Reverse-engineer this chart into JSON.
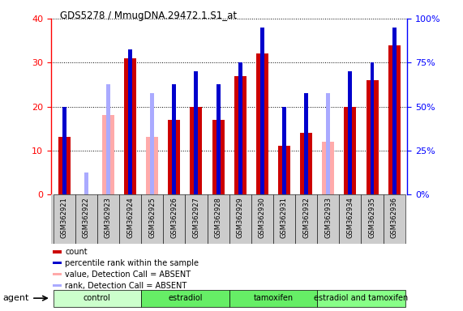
{
  "title": "GDS5278 / MmugDNA.29472.1.S1_at",
  "samples": [
    "GSM362921",
    "GSM362922",
    "GSM362923",
    "GSM362924",
    "GSM362925",
    "GSM362926",
    "GSM362927",
    "GSM362928",
    "GSM362929",
    "GSM362930",
    "GSM362931",
    "GSM362932",
    "GSM362933",
    "GSM362934",
    "GSM362935",
    "GSM362936"
  ],
  "red_count": [
    13,
    0,
    0,
    31,
    0,
    17,
    20,
    17,
    27,
    32,
    11,
    14,
    0,
    20,
    26,
    34
  ],
  "blue_rank": [
    20,
    0,
    0,
    33,
    0,
    25,
    28,
    25,
    30,
    38,
    20,
    23,
    0,
    28,
    30,
    38
  ],
  "pink_value": [
    0,
    0,
    18,
    0,
    13,
    0,
    0,
    0,
    0,
    0,
    0,
    0,
    12,
    0,
    0,
    0
  ],
  "lavender_rank": [
    0,
    5,
    25,
    0,
    23,
    0,
    0,
    0,
    0,
    0,
    0,
    0,
    23,
    0,
    0,
    0
  ],
  "detection_absent": [
    false,
    true,
    true,
    false,
    true,
    false,
    false,
    false,
    false,
    false,
    false,
    false,
    true,
    false,
    false,
    false
  ],
  "ylim_left": [
    0,
    40
  ],
  "yticks_left": [
    0,
    10,
    20,
    30,
    40
  ],
  "ytick_labels_left": [
    "0",
    "10",
    "20",
    "30",
    "40"
  ],
  "ytick_labels_right": [
    "0%",
    "25%",
    "50%",
    "75%",
    "100%"
  ],
  "color_red": "#cc0000",
  "color_blue": "#0000cc",
  "color_pink": "#ffaaaa",
  "color_lavender": "#aaaaff",
  "groups": [
    {
      "name": "control",
      "start": 0,
      "end": 3,
      "color": "#ccffcc"
    },
    {
      "name": "estradiol",
      "start": 4,
      "end": 7,
      "color": "#66ee66"
    },
    {
      "name": "tamoxifen",
      "start": 8,
      "end": 11,
      "color": "#66ee66"
    },
    {
      "name": "estradiol and tamoxifen",
      "start": 12,
      "end": 15,
      "color": "#88ff88"
    }
  ],
  "legend_items": [
    {
      "color": "#cc0000",
      "label": "count"
    },
    {
      "color": "#0000cc",
      "label": "percentile rank within the sample"
    },
    {
      "color": "#ffaaaa",
      "label": "value, Detection Call = ABSENT"
    },
    {
      "color": "#aaaaff",
      "label": "rank, Detection Call = ABSENT"
    }
  ],
  "bar_width": 0.55,
  "blue_bar_width": 0.18
}
